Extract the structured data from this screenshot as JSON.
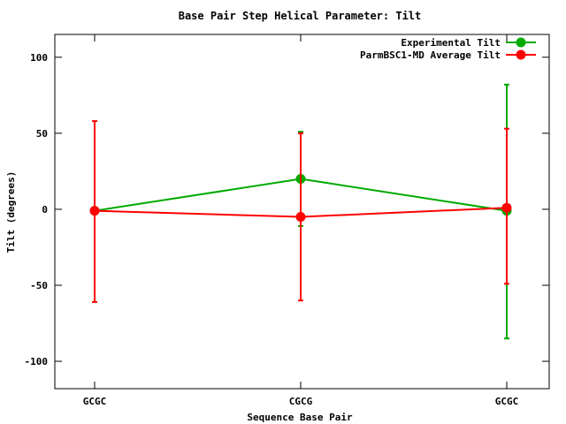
{
  "chart_data": {
    "type": "line",
    "title": "Base Pair Step Helical Parameter: Tilt",
    "xlabel": "Sequence Base Pair",
    "ylabel": "Tilt (degrees)",
    "categories": [
      "GCGC",
      "CGCG",
      "GCGC"
    ],
    "ylim": [
      -118,
      115
    ],
    "yticks": [
      -100,
      -50,
      0,
      50,
      100
    ],
    "legend_position": "top-right",
    "grid": false,
    "series": [
      {
        "name": "Experimental Tilt",
        "color": "#00aa00",
        "values": [
          -1,
          20,
          -1
        ],
        "err_low": [
          -3,
          -11,
          -85
        ],
        "err_high": [
          1,
          51,
          82
        ]
      },
      {
        "name": "ParmBSC1-MD Average Tilt",
        "color": "#ff0000",
        "values": [
          -1,
          -5,
          1
        ],
        "err_low": [
          -61,
          -60,
          -49
        ],
        "err_high": [
          58,
          50,
          53
        ]
      }
    ]
  }
}
